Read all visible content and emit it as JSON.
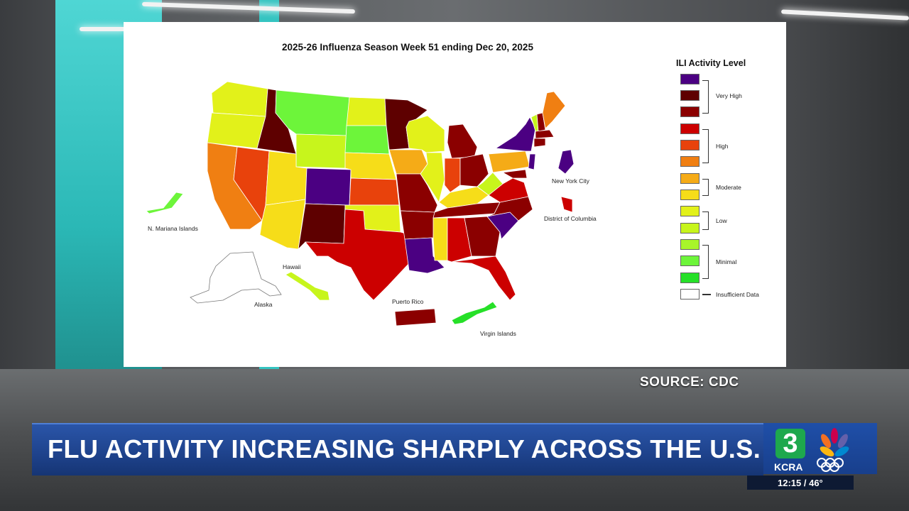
{
  "map": {
    "title": "2025-26 Influenza Season Week 51 ending Dec 20, 2025",
    "labels": {
      "n_mariana": "N. Mariana Islands",
      "hawaii": "Hawaii",
      "alaska": "Alaska",
      "puerto_rico": "Puerto Rico",
      "virgin_islands": "Virgin Islands",
      "new_york_city": "New York City",
      "dc": "District of Columbia"
    },
    "colors": {
      "l13": "#4b0082",
      "l12": "#5e0000",
      "l11": "#8b0000",
      "l10": "#cc0000",
      "l9": "#e8420c",
      "l8": "#f07f12",
      "l7": "#f5ab17",
      "l6": "#f6dd19",
      "l5": "#e2f11a",
      "l4": "#c7f51c",
      "l3": "#a8f52a",
      "l2": "#6df53a",
      "l1": "#26e028",
      "none": "#ffffff"
    }
  },
  "legend": {
    "title": "ILI Activity Level",
    "groups": {
      "very_high": "Very High",
      "high": "High",
      "moderate": "Moderate",
      "low": "Low",
      "minimal": "Minimal",
      "insufficient": "Insufficient Data"
    }
  },
  "source": "SOURCE: CDC",
  "headline": "FLU ACTIVITY INCREASING SHARPLY ACROSS THE U.S.",
  "station": {
    "channel": "3",
    "call_sign": "KCRA",
    "time_temp": "12:15 / 46°"
  }
}
